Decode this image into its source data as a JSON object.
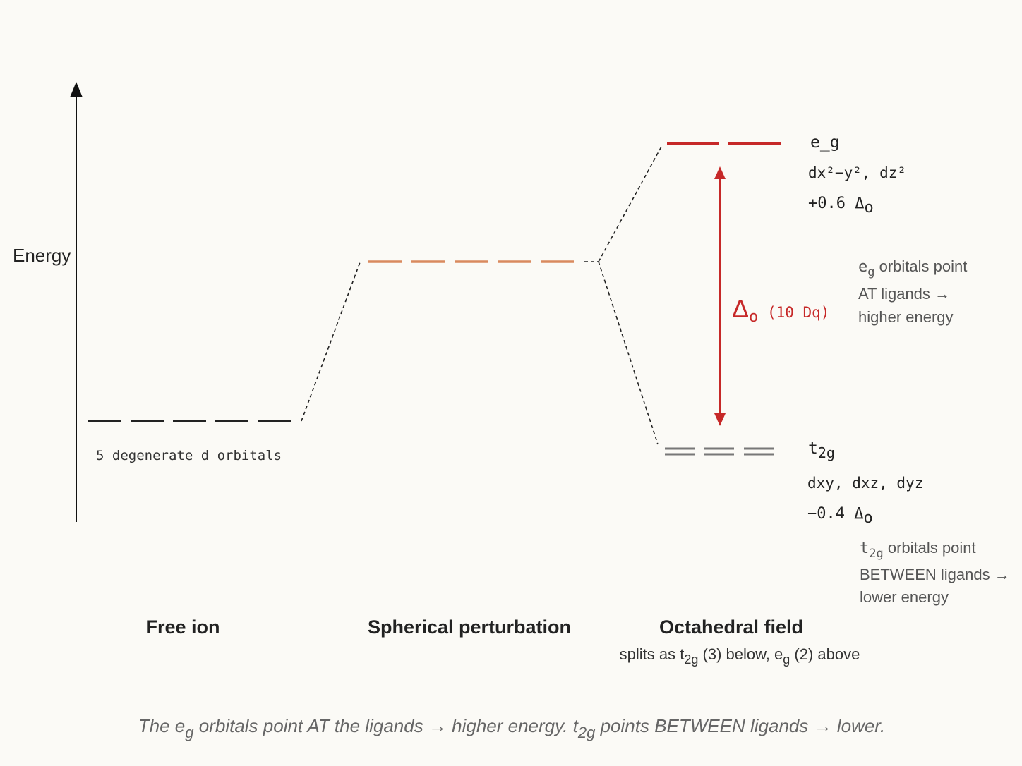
{
  "axis_label": "Energy",
  "free_ion": {
    "label": "Free ion",
    "note": "5 degenerate d orbitals"
  },
  "spherical": {
    "label": "Spherical perturbation"
  },
  "octahedral": {
    "label": "Octahedral field",
    "note": {
      "a": "splits as t",
      "b": "2g",
      "c": " (3) below, e",
      "d": "g",
      "e": " (2) above"
    }
  },
  "eg": {
    "name": "e_g",
    "orbitals": "dx²−y², dz²",
    "energy": "+0.6 Δ",
    "energy_sub": "o",
    "note": {
      "sym": "e",
      "sub": "g",
      "line1": " orbitals point",
      "line2": "AT ligands →",
      "line3": "higher energy"
    }
  },
  "t2g": {
    "name": "t",
    "name_sub": "2g",
    "orbitals": "dxy, dxz, dyz",
    "energy": "−0.4 Δ",
    "energy_sub": "o",
    "note": {
      "sym": "t",
      "sub": "2g",
      "line1": " orbitals point",
      "line2": "BETWEEN ligands →",
      "line3": "lower energy"
    }
  },
  "splitting": {
    "symbol": "Δ",
    "sub": "o",
    "label": " (10 Dq)"
  },
  "caption": {
    "a": "The e",
    "b": "g",
    "c": " orbitals point AT the ligands → higher energy. t",
    "d": "2g",
    "e": " points BETWEEN ligands → lower."
  }
}
